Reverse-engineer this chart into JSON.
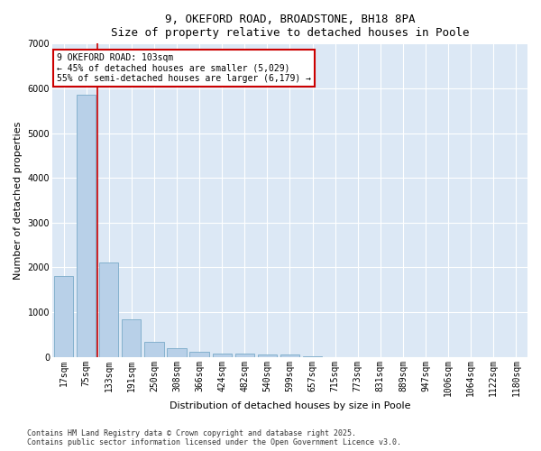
{
  "title1": "9, OKEFORD ROAD, BROADSTONE, BH18 8PA",
  "title2": "Size of property relative to detached houses in Poole",
  "xlabel": "Distribution of detached houses by size in Poole",
  "ylabel": "Number of detached properties",
  "categories": [
    "17sqm",
    "75sqm",
    "133sqm",
    "191sqm",
    "250sqm",
    "308sqm",
    "366sqm",
    "424sqm",
    "482sqm",
    "540sqm",
    "599sqm",
    "657sqm",
    "715sqm",
    "773sqm",
    "831sqm",
    "889sqm",
    "947sqm",
    "1006sqm",
    "1064sqm",
    "1122sqm",
    "1180sqm"
  ],
  "values": [
    1800,
    5850,
    2100,
    830,
    330,
    190,
    110,
    80,
    65,
    55,
    45,
    10,
    0,
    0,
    0,
    0,
    0,
    0,
    0,
    0,
    0
  ],
  "bar_color": "#b8d0e8",
  "bar_edge_color": "#7aaac8",
  "vline_color": "#cc0000",
  "vline_x": 1.5,
  "annotation_title": "9 OKEFORD ROAD: 103sqm",
  "annotation_line1": "← 45% of detached houses are smaller (5,029)",
  "annotation_line2": "55% of semi-detached houses are larger (6,179) →",
  "annotation_box_facecolor": "#ffffff",
  "annotation_box_edgecolor": "#cc0000",
  "ylim": [
    0,
    7000
  ],
  "yticks": [
    0,
    1000,
    2000,
    3000,
    4000,
    5000,
    6000,
    7000
  ],
  "plot_bg_color": "#dce8f5",
  "fig_bg_color": "#ffffff",
  "grid_color": "#ffffff",
  "footer1": "Contains HM Land Registry data © Crown copyright and database right 2025.",
  "footer2": "Contains public sector information licensed under the Open Government Licence v3.0.",
  "title_fontsize": 9,
  "axis_label_fontsize": 8,
  "tick_fontsize": 7,
  "annotation_fontsize": 7,
  "footer_fontsize": 6
}
